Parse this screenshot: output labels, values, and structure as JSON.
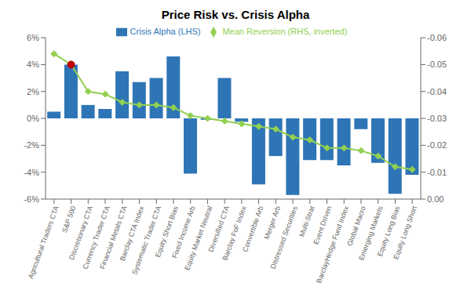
{
  "chart_data": {
    "type": "bar",
    "title": "Price Risk vs. Crisis Alpha",
    "categories": [
      "Agricultural Traders CTA",
      "S&P 500",
      "Discretionary CTA",
      "Currency Trader CTA",
      "Financial Metals CTA",
      "Barclay CTA Index",
      "Systematic Trader CTA",
      "Equity Short Bias",
      "Fixed Income Arb",
      "Equity Market Neutral",
      "Diversified CTA",
      "Barclay FoF Index",
      "Convertible Arb",
      "Merger Arb",
      "Distressed Securities",
      "Multi-Strat",
      "Event Driven",
      "BarclayHedge Fund Index",
      "Global Macro",
      "Emerging Markets",
      "Equity Long Bias",
      "Equity Long Short"
    ],
    "series": [
      {
        "name": "Crisis Alpha (LHS)",
        "type": "bar",
        "color": "#2e75b6",
        "values": [
          0.5,
          4.0,
          1.0,
          0.7,
          3.5,
          2.7,
          3.0,
          4.6,
          -4.1,
          -0.1,
          3.0,
          -0.25,
          -4.9,
          -2.8,
          -5.7,
          -3.1,
          -3.1,
          -3.5,
          -0.8,
          -3.3,
          -5.6,
          -4.2
        ]
      },
      {
        "name": "Mean Reversion (RHS, inverted)",
        "type": "line",
        "axis": "y2",
        "color": "#92d050",
        "colors": [
          "#92d050",
          "#c00000",
          "#92d050",
          "#92d050",
          "#92d050",
          "#92d050",
          "#92d050",
          "#92d050",
          "#92d050",
          "#92d050",
          "#92d050",
          "#92d050",
          "#92d050",
          "#92d050",
          "#92d050",
          "#92d050",
          "#92d050",
          "#92d050",
          "#92d050",
          "#92d050",
          "#92d050",
          "#92d050"
        ],
        "marker": "diamond",
        "values": [
          -0.054,
          -0.05,
          -0.04,
          -0.039,
          -0.036,
          -0.035,
          -0.035,
          -0.034,
          -0.031,
          -0.03,
          -0.029,
          -0.028,
          -0.027,
          -0.026,
          -0.023,
          -0.022,
          -0.019,
          -0.019,
          -0.018,
          -0.016,
          -0.012,
          -0.011
        ]
      }
    ],
    "ylim": [
      -6,
      6
    ],
    "yticks": [
      {
        "value": -6,
        "label": "-6%"
      },
      {
        "value": -4,
        "label": "-4%"
      },
      {
        "value": -2,
        "label": "-2%"
      },
      {
        "value": 0,
        "label": "0%"
      },
      {
        "value": 2,
        "label": "2%"
      },
      {
        "value": 4,
        "label": "4%"
      },
      {
        "value": 6,
        "label": "6%"
      }
    ],
    "y2lim": [
      0,
      -0.06
    ],
    "y2ticks": [
      {
        "value": 0,
        "label": "0.00"
      },
      -0.01,
      -0.02,
      -0.03,
      -0.04,
      -0.05,
      -0.06
    ],
    "grid": false,
    "legend": "top"
  }
}
